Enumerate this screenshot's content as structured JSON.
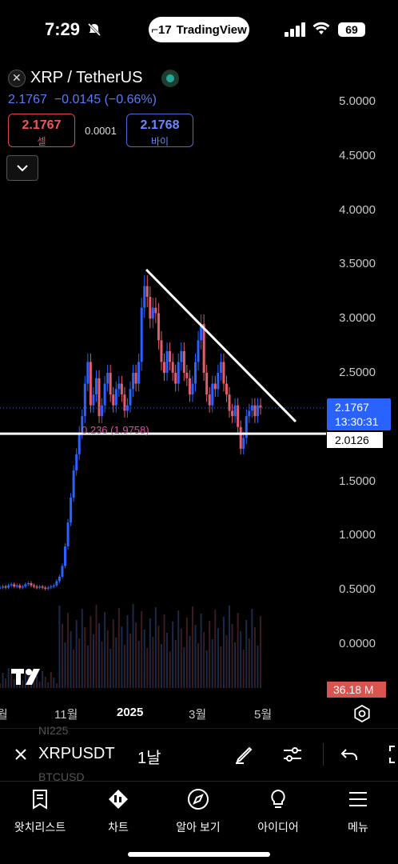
{
  "status_bar": {
    "time": "7:29",
    "battery": "69",
    "app_pill": "TradingView"
  },
  "symbol": {
    "name": "XRP / TetherUS",
    "price": "2.1767",
    "change": "−0.0145",
    "change_pct": "(−0.66%)",
    "sell_price": "2.1767",
    "sell_label": "셀",
    "buy_price": "2.1768",
    "buy_label": "바이",
    "spread": "0.0001"
  },
  "yaxis": [
    "5.0000",
    "4.5000",
    "4.0000",
    "3.5000",
    "3.0000",
    "2.5000",
    "2.0000",
    "1.5000",
    "1.0000",
    "0.5000",
    "0.0000"
  ],
  "price_tag": {
    "price": "2.1767",
    "countdown": "13:30:31"
  },
  "line_tag": "2.0126",
  "volume_tag": "36.18 M",
  "annotation": "(1.9758)",
  "annotation_prefix": "0.236",
  "xaxis": [
    "월",
    "11월",
    "2025",
    "3월",
    "5월"
  ],
  "toolbar": {
    "ghost_top": "NI225",
    "symbol": "XRPUSDT",
    "interval": "1날",
    "ghost_bottom": "BTCUSD"
  },
  "tabs": [
    {
      "label": "왓치리스트",
      "icon": "watchlist-icon"
    },
    {
      "label": "차트",
      "icon": "chart-icon"
    },
    {
      "label": "알아 보기",
      "icon": "compass-icon"
    },
    {
      "label": "아이디어",
      "icon": "lightbulb-icon"
    },
    {
      "label": "메뉴",
      "icon": "menu-icon"
    }
  ],
  "colors": {
    "up": "#2962ff",
    "down": "#e35d6a",
    "accent": "#2962ff",
    "trendline": "#ffffff",
    "volume_tag": "#d9534f"
  },
  "chart_data": {
    "type": "candlestick",
    "title": "XRP / TetherUS",
    "interval": "1D",
    "ylim": [
      0,
      5.0
    ],
    "x_ticks": [
      "월",
      "11월",
      "2025",
      "3월",
      "5월"
    ],
    "y_ticks": [
      0,
      0.5,
      1.0,
      1.5,
      2.0,
      2.5,
      3.0,
      3.5,
      4.0,
      4.5,
      5.0
    ],
    "close_series": [
      0.52,
      0.53,
      0.52,
      0.54,
      0.55,
      0.53,
      0.54,
      0.52,
      0.53,
      0.55,
      0.56,
      0.54,
      0.53,
      0.52,
      0.53,
      0.52,
      0.51,
      0.52,
      0.53,
      0.54,
      0.58,
      0.62,
      0.72,
      0.9,
      1.12,
      1.35,
      1.6,
      1.75,
      1.95,
      2.1,
      2.4,
      2.6,
      2.2,
      2.3,
      2.45,
      2.1,
      2.2,
      2.4,
      2.5,
      2.3,
      2.2,
      2.35,
      2.4,
      2.3,
      2.15,
      2.2,
      2.35,
      2.5,
      2.4,
      2.6,
      3.1,
      3.3,
      3.2,
      3.0,
      3.1,
      3.05,
      2.8,
      2.6,
      2.5,
      2.7,
      2.6,
      2.5,
      2.4,
      2.6,
      2.7,
      2.5,
      2.45,
      2.3,
      2.4,
      2.6,
      2.8,
      2.95,
      2.5,
      2.3,
      2.2,
      2.4,
      2.35,
      2.5,
      2.6,
      2.4,
      2.3,
      2.15,
      2.1,
      2.2,
      2.0,
      1.8,
      1.9,
      2.1,
      2.15,
      2.2,
      2.1,
      2.2,
      2.18
    ],
    "last_price": 2.1767,
    "horizontal_line": 2.0126,
    "trendline": {
      "from": {
        "x": "2025-01",
        "y": 3.45
      },
      "to": {
        "x": "2025-05",
        "y": 2.02
      }
    },
    "volume_last": "36.18 M"
  }
}
